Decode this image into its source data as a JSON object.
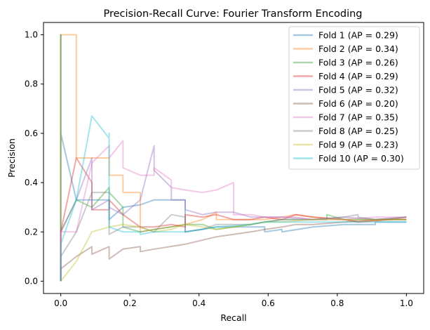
{
  "chart_data": {
    "type": "line",
    "title": "Precision-Recall Curve: Fourier Transform Encoding",
    "xlabel": "Recall",
    "ylabel": "Precision",
    "xlim": [
      -0.05,
      1.05
    ],
    "ylim": [
      -0.05,
      1.05
    ],
    "xticks": [
      0.0,
      0.2,
      0.4,
      0.6,
      0.8,
      1.0
    ],
    "xtick_labels": [
      "0.0",
      "0.2",
      "0.4",
      "0.6",
      "0.8",
      "1.0"
    ],
    "yticks": [
      0.0,
      0.2,
      0.4,
      0.6,
      0.8,
      1.0
    ],
    "ytick_labels": [
      "0.0",
      "0.2",
      "0.4",
      "0.6",
      "0.8",
      "1.0"
    ],
    "grid": false,
    "legend_position": "top-right",
    "line_opacity": 0.4,
    "series": [
      {
        "name": "Fold 1 (AP = 0.29)",
        "color": "#1f77b4",
        "points": [
          [
            0,
            0
          ],
          [
            0,
            1.0
          ],
          [
            0,
            0.6
          ],
          [
            0.045,
            0.33
          ],
          [
            0.09,
            0.33
          ],
          [
            0.14,
            0.33
          ],
          [
            0.14,
            0.25
          ],
          [
            0.18,
            0.3
          ],
          [
            0.23,
            0.31
          ],
          [
            0.27,
            0.33
          ],
          [
            0.32,
            0.33
          ],
          [
            0.36,
            0.33
          ],
          [
            0.36,
            0.2
          ],
          [
            0.45,
            0.22
          ],
          [
            0.59,
            0.22
          ],
          [
            0.59,
            0.2
          ],
          [
            0.64,
            0.21
          ],
          [
            0.64,
            0.2
          ],
          [
            0.73,
            0.22
          ],
          [
            0.82,
            0.23
          ],
          [
            0.91,
            0.23
          ],
          [
            0.91,
            0.24
          ],
          [
            1.0,
            0.24
          ]
        ]
      },
      {
        "name": "Fold 2 (AP = 0.34)",
        "color": "#ff7f0e",
        "points": [
          [
            0,
            0
          ],
          [
            0,
            1.0
          ],
          [
            0.045,
            1.0
          ],
          [
            0.045,
            0.5
          ],
          [
            0.09,
            0.5
          ],
          [
            0.14,
            0.5
          ],
          [
            0.14,
            0.43
          ],
          [
            0.18,
            0.43
          ],
          [
            0.18,
            0.36
          ],
          [
            0.23,
            0.36
          ],
          [
            0.23,
            0.2
          ],
          [
            0.27,
            0.21
          ],
          [
            0.36,
            0.23
          ],
          [
            0.41,
            0.25
          ],
          [
            0.45,
            0.28
          ],
          [
            0.45,
            0.25
          ],
          [
            0.55,
            0.25
          ],
          [
            0.59,
            0.25
          ],
          [
            0.64,
            0.26
          ],
          [
            0.68,
            0.27
          ],
          [
            0.73,
            0.26
          ],
          [
            0.82,
            0.25
          ],
          [
            0.86,
            0.24
          ],
          [
            0.95,
            0.25
          ],
          [
            1.0,
            0.25
          ]
        ]
      },
      {
        "name": "Fold 3 (AP = 0.26)",
        "color": "#2ca02c",
        "points": [
          [
            0,
            0
          ],
          [
            0,
            1.0
          ],
          [
            0,
            0.2
          ],
          [
            0.045,
            0.33
          ],
          [
            0.09,
            0.3
          ],
          [
            0.14,
            0.38
          ],
          [
            0.14,
            0.36
          ],
          [
            0.18,
            0.3
          ],
          [
            0.18,
            0.22
          ],
          [
            0.23,
            0.2
          ],
          [
            0.27,
            0.21
          ],
          [
            0.32,
            0.22
          ],
          [
            0.36,
            0.23
          ],
          [
            0.41,
            0.23
          ],
          [
            0.45,
            0.21
          ],
          [
            0.5,
            0.22
          ],
          [
            0.55,
            0.23
          ],
          [
            0.59,
            0.24
          ],
          [
            0.64,
            0.25
          ],
          [
            0.68,
            0.25
          ],
          [
            0.73,
            0.25
          ],
          [
            0.77,
            0.25
          ],
          [
            0.77,
            0.27
          ],
          [
            0.82,
            0.25
          ],
          [
            0.91,
            0.25
          ],
          [
            1.0,
            0.25
          ]
        ]
      },
      {
        "name": "Fold 4 (AP = 0.29)",
        "color": "#d62728",
        "points": [
          [
            0,
            0
          ],
          [
            0,
            0.2
          ],
          [
            0.045,
            0.5
          ],
          [
            0.09,
            0.4
          ],
          [
            0.09,
            0.29
          ],
          [
            0.14,
            0.29
          ],
          [
            0.14,
            0.33
          ],
          [
            0.18,
            0.27
          ],
          [
            0.23,
            0.22
          ],
          [
            0.27,
            0.22
          ],
          [
            0.32,
            0.23
          ],
          [
            0.36,
            0.22
          ],
          [
            0.36,
            0.27
          ],
          [
            0.41,
            0.26
          ],
          [
            0.45,
            0.27
          ],
          [
            0.5,
            0.25
          ],
          [
            0.55,
            0.25
          ],
          [
            0.59,
            0.26
          ],
          [
            0.64,
            0.25
          ],
          [
            0.68,
            0.27
          ],
          [
            0.73,
            0.26
          ],
          [
            0.82,
            0.25
          ],
          [
            0.86,
            0.24
          ],
          [
            0.95,
            0.25
          ],
          [
            1.0,
            0.26
          ]
        ]
      },
      {
        "name": "Fold 5 (AP = 0.32)",
        "color": "#9467bd",
        "points": [
          [
            0,
            0
          ],
          [
            0,
            0.2
          ],
          [
            0.045,
            0.33
          ],
          [
            0.09,
            0.5
          ],
          [
            0.09,
            0.29
          ],
          [
            0.14,
            0.33
          ],
          [
            0.14,
            0.3
          ],
          [
            0.18,
            0.27
          ],
          [
            0.23,
            0.33
          ],
          [
            0.27,
            0.55
          ],
          [
            0.27,
            0.45
          ],
          [
            0.32,
            0.38
          ],
          [
            0.32,
            0.33
          ],
          [
            0.36,
            0.33
          ],
          [
            0.36,
            0.29
          ],
          [
            0.41,
            0.27
          ],
          [
            0.45,
            0.28
          ],
          [
            0.5,
            0.28
          ],
          [
            0.55,
            0.26
          ],
          [
            0.59,
            0.26
          ],
          [
            0.64,
            0.26
          ],
          [
            0.73,
            0.25
          ],
          [
            0.82,
            0.26
          ],
          [
            0.91,
            0.25
          ],
          [
            1.0,
            0.26
          ]
        ]
      },
      {
        "name": "Fold 6 (AP = 0.20)",
        "color": "#8c564b",
        "points": [
          [
            0,
            0
          ],
          [
            0,
            0.05
          ],
          [
            0.045,
            0.1
          ],
          [
            0.09,
            0.14
          ],
          [
            0.09,
            0.11
          ],
          [
            0.14,
            0.14
          ],
          [
            0.14,
            0.09
          ],
          [
            0.18,
            0.13
          ],
          [
            0.23,
            0.14
          ],
          [
            0.23,
            0.12
          ],
          [
            0.27,
            0.13
          ],
          [
            0.36,
            0.15
          ],
          [
            0.45,
            0.18
          ],
          [
            0.55,
            0.2
          ],
          [
            0.59,
            0.21
          ],
          [
            0.64,
            0.22
          ],
          [
            0.68,
            0.23
          ],
          [
            0.73,
            0.23
          ],
          [
            0.82,
            0.24
          ],
          [
            0.91,
            0.25
          ],
          [
            1.0,
            0.25
          ]
        ]
      },
      {
        "name": "Fold 7 (AP = 0.35)",
        "color": "#e377c2",
        "points": [
          [
            0,
            0
          ],
          [
            0,
            0.2
          ],
          [
            0.045,
            0.2
          ],
          [
            0.09,
            0.48
          ],
          [
            0.14,
            0.55
          ],
          [
            0.14,
            0.5
          ],
          [
            0.18,
            0.57
          ],
          [
            0.18,
            0.46
          ],
          [
            0.23,
            0.43
          ],
          [
            0.27,
            0.43
          ],
          [
            0.27,
            0.46
          ],
          [
            0.32,
            0.41
          ],
          [
            0.32,
            0.38
          ],
          [
            0.36,
            0.37
          ],
          [
            0.41,
            0.36
          ],
          [
            0.45,
            0.37
          ],
          [
            0.5,
            0.4
          ],
          [
            0.5,
            0.27
          ],
          [
            0.55,
            0.27
          ],
          [
            0.59,
            0.26
          ],
          [
            0.68,
            0.26
          ],
          [
            0.73,
            0.25
          ],
          [
            0.82,
            0.25
          ],
          [
            0.91,
            0.26
          ],
          [
            1.0,
            0.26
          ]
        ]
      },
      {
        "name": "Fold 8 (AP = 0.25)",
        "color": "#7f7f7f",
        "points": [
          [
            0,
            0
          ],
          [
            0,
            0.1
          ],
          [
            0.045,
            0.2
          ],
          [
            0.09,
            0.36
          ],
          [
            0.14,
            0.36
          ],
          [
            0.14,
            0.19
          ],
          [
            0.18,
            0.22
          ],
          [
            0.23,
            0.22
          ],
          [
            0.27,
            0.2
          ],
          [
            0.32,
            0.27
          ],
          [
            0.36,
            0.26
          ],
          [
            0.36,
            0.2
          ],
          [
            0.41,
            0.21
          ],
          [
            0.45,
            0.23
          ],
          [
            0.55,
            0.23
          ],
          [
            0.59,
            0.24
          ],
          [
            0.64,
            0.25
          ],
          [
            0.73,
            0.25
          ],
          [
            0.82,
            0.26
          ],
          [
            0.86,
            0.27
          ],
          [
            0.86,
            0.26
          ],
          [
            0.91,
            0.25
          ],
          [
            1.0,
            0.26
          ]
        ]
      },
      {
        "name": "Fold 9 (AP = 0.23)",
        "color": "#bcbd22",
        "points": [
          [
            0,
            0
          ],
          [
            0.045,
            0.08
          ],
          [
            0.09,
            0.2
          ],
          [
            0.14,
            0.22
          ],
          [
            0.18,
            0.23
          ],
          [
            0.23,
            0.22
          ],
          [
            0.27,
            0.2
          ],
          [
            0.32,
            0.21
          ],
          [
            0.36,
            0.23
          ],
          [
            0.41,
            0.22
          ],
          [
            0.45,
            0.21
          ],
          [
            0.5,
            0.22
          ],
          [
            0.55,
            0.23
          ],
          [
            0.59,
            0.24
          ],
          [
            0.64,
            0.24
          ],
          [
            0.73,
            0.25
          ],
          [
            0.82,
            0.25
          ],
          [
            0.91,
            0.25
          ],
          [
            1.0,
            0.25
          ]
        ]
      },
      {
        "name": "Fold 10 (AP = 0.30)",
        "color": "#17becf",
        "points": [
          [
            0,
            0
          ],
          [
            0,
            0.15
          ],
          [
            0.045,
            0.33
          ],
          [
            0.09,
            0.67
          ],
          [
            0.14,
            0.58
          ],
          [
            0.14,
            0.6
          ],
          [
            0.14,
            0.22
          ],
          [
            0.18,
            0.2
          ],
          [
            0.23,
            0.2
          ],
          [
            0.23,
            0.19
          ],
          [
            0.27,
            0.2
          ],
          [
            0.32,
            0.2
          ],
          [
            0.36,
            0.2
          ],
          [
            0.41,
            0.21
          ],
          [
            0.45,
            0.22
          ],
          [
            0.55,
            0.23
          ],
          [
            0.59,
            0.24
          ],
          [
            0.64,
            0.24
          ],
          [
            0.73,
            0.24
          ],
          [
            0.82,
            0.24
          ],
          [
            0.91,
            0.24
          ],
          [
            1.0,
            0.24
          ]
        ]
      }
    ]
  }
}
